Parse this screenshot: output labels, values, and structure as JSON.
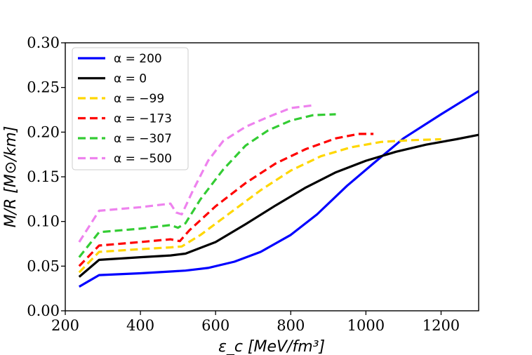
{
  "chart_data": {
    "type": "line",
    "xlabel": "ε_c [MeV/fm³]",
    "ylabel": "M/R [M⊙/km]",
    "xlim": [
      200,
      1300
    ],
    "ylim": [
      0.0,
      0.3
    ],
    "xticks": [
      "200",
      "400",
      "600",
      "800",
      "1000",
      "1200"
    ],
    "yticks": [
      "0.00",
      "0.05",
      "0.10",
      "0.15",
      "0.20",
      "0.25",
      "0.30"
    ],
    "grid": false,
    "legend_position": "top-left",
    "series": [
      {
        "name": "α = 200",
        "color": "#0000ff",
        "dash": "solid",
        "x": [
          237,
          290,
          400,
          480,
          520,
          580,
          650,
          720,
          800,
          870,
          950,
          1020,
          1100,
          1200,
          1300
        ],
        "y": [
          0.027,
          0.04,
          0.042,
          0.044,
          0.045,
          0.048,
          0.055,
          0.066,
          0.085,
          0.108,
          0.14,
          0.165,
          0.193,
          0.22,
          0.246
        ]
      },
      {
        "name": "α = 0",
        "color": "#000000",
        "dash": "solid",
        "x": [
          237,
          290,
          400,
          480,
          520,
          600,
          680,
          760,
          840,
          920,
          1000,
          1080,
          1160,
          1240,
          1300
        ],
        "y": [
          0.038,
          0.057,
          0.06,
          0.062,
          0.064,
          0.077,
          0.097,
          0.118,
          0.138,
          0.155,
          0.168,
          0.178,
          0.186,
          0.192,
          0.197
        ]
      },
      {
        "name": "α = −99",
        "color": "#ffd700",
        "dash": "dashed",
        "x": [
          237,
          290,
          400,
          480,
          510,
          560,
          640,
          720,
          800,
          880,
          960,
          1040,
          1120,
          1200
        ],
        "y": [
          0.043,
          0.066,
          0.069,
          0.071,
          0.072,
          0.085,
          0.11,
          0.135,
          0.157,
          0.173,
          0.183,
          0.189,
          0.191,
          0.192
        ]
      },
      {
        "name": "α = −173",
        "color": "#ff0000",
        "dash": "dashed",
        "x": [
          237,
          290,
          400,
          480,
          505,
          530,
          600,
          680,
          760,
          840,
          920,
          980,
          1020
        ],
        "y": [
          0.05,
          0.073,
          0.077,
          0.08,
          0.078,
          0.09,
          0.117,
          0.143,
          0.165,
          0.181,
          0.193,
          0.198,
          0.198
        ]
      },
      {
        "name": "α = −307",
        "color": "#33cc33",
        "dash": "dashed",
        "x": [
          237,
          290,
          400,
          480,
          500,
          520,
          560,
          620,
          680,
          740,
          800,
          860,
          920
        ],
        "y": [
          0.06,
          0.088,
          0.092,
          0.096,
          0.093,
          0.098,
          0.125,
          0.158,
          0.185,
          0.202,
          0.213,
          0.219,
          0.22
        ]
      },
      {
        "name": "α = −500",
        "color": "#ee82ee",
        "dash": "dashed",
        "x": [
          237,
          290,
          400,
          480,
          495,
          510,
          540,
          580,
          620,
          680,
          740,
          800,
          860
        ],
        "y": [
          0.077,
          0.112,
          0.116,
          0.12,
          0.11,
          0.108,
          0.135,
          0.168,
          0.19,
          0.206,
          0.217,
          0.227,
          0.23
        ]
      }
    ]
  }
}
